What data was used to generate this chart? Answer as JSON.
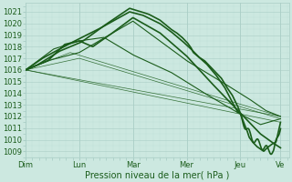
{
  "bg_color": "#cce8e0",
  "grid_color_major": "#aacec6",
  "grid_color_minor": "#bcddd6",
  "line_color": "#1a5c1a",
  "ylim": [
    1008.5,
    1021.8
  ],
  "yticks": [
    1009,
    1010,
    1011,
    1012,
    1013,
    1014,
    1015,
    1016,
    1017,
    1018,
    1019,
    1020,
    1021
  ],
  "xlabel": "Pression niveau de la mer( hPa )",
  "day_labels": [
    "Dim",
    "Lun",
    "Mar",
    "Mer",
    "Jeu",
    "Ve"
  ],
  "day_positions": [
    0,
    48,
    96,
    144,
    192,
    228
  ],
  "xlim": [
    0,
    236
  ]
}
